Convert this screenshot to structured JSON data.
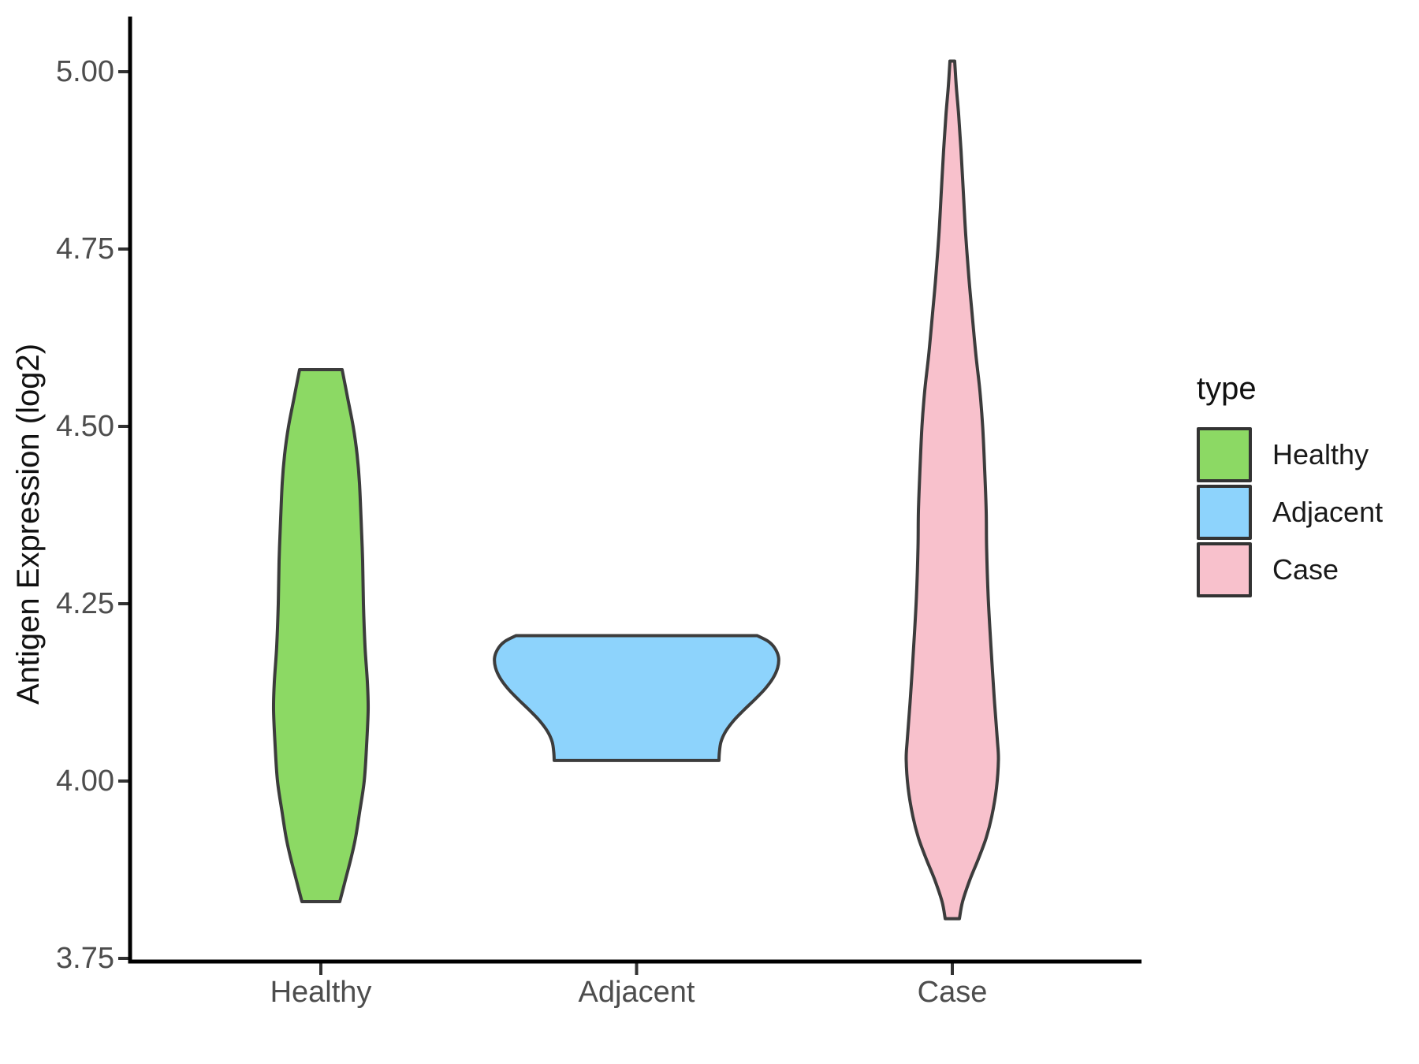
{
  "figure": {
    "background": "#ffffff",
    "y_axis": {
      "title": "Antigen Expression (log2)",
      "tick_labels": [
        "5.00",
        "4.75",
        "4.50",
        "4.25",
        "4.00",
        "3.75"
      ],
      "tick_values": [
        5.0,
        4.75,
        4.5,
        4.25,
        4.0,
        3.75
      ]
    },
    "x_axis": {
      "categories": [
        "Healthy",
        "Adjacent",
        "Case"
      ]
    },
    "legend": {
      "title": "type",
      "entries": [
        {
          "label": "Healthy",
          "color": "#8cd964"
        },
        {
          "label": "Adjacent",
          "color": "#8dd3fc"
        },
        {
          "label": "Case",
          "color": "#f8c1cc"
        }
      ]
    }
  },
  "chart_data": {
    "type": "violin",
    "title": "",
    "xlabel": "",
    "ylabel": "Antigen Expression (log2)",
    "categories": [
      "Healthy",
      "Adjacent",
      "Case"
    ],
    "ylim": [
      3.72,
      5.07
    ],
    "y_ticks": [
      5.0,
      4.75,
      4.5,
      4.25,
      4.0,
      3.75
    ],
    "grid": false,
    "legend_position": "right",
    "outline_color": "#3c3c3c",
    "axis_color": "#000000",
    "tick_color": "#333333",
    "tick_label_color": "#4d4d4d",
    "profile_units": "each point is [y_value_log2, half_width_px]; violins trimmed flat at data range ends",
    "series": [
      {
        "name": "Healthy",
        "fill": "#8cd964",
        "data_range": [
          3.83,
          4.58
        ],
        "profile": [
          [
            4.58,
            27
          ],
          [
            4.54,
            34
          ],
          [
            4.5,
            41
          ],
          [
            4.46,
            46
          ],
          [
            4.42,
            49
          ],
          [
            4.37,
            51
          ],
          [
            4.31,
            53
          ],
          [
            4.25,
            54
          ],
          [
            4.19,
            56
          ],
          [
            4.14,
            59
          ],
          [
            4.1,
            60
          ],
          [
            4.05,
            58
          ],
          [
            4.0,
            55
          ],
          [
            3.955,
            49
          ],
          [
            3.92,
            44
          ],
          [
            3.89,
            38
          ],
          [
            3.86,
            31
          ],
          [
            3.83,
            24
          ]
        ]
      },
      {
        "name": "Adjacent",
        "fill": "#8dd3fc",
        "data_range": [
          4.03,
          4.21
        ],
        "profile": [
          [
            4.205,
            153
          ],
          [
            4.197,
            167
          ],
          [
            4.188,
            175
          ],
          [
            4.175,
            180
          ],
          [
            4.16,
            179
          ],
          [
            4.145,
            173
          ],
          [
            4.13,
            163
          ],
          [
            4.115,
            150
          ],
          [
            4.1,
            136
          ],
          [
            4.085,
            123
          ],
          [
            4.07,
            113
          ],
          [
            4.055,
            107
          ],
          [
            4.04,
            105
          ],
          [
            4.029,
            104.5
          ]
        ]
      },
      {
        "name": "Case",
        "fill": "#f8c1cc",
        "data_range": [
          3.81,
          5.02
        ],
        "profile": [
          [
            5.015,
            3
          ],
          [
            4.98,
            5
          ],
          [
            4.94,
            8
          ],
          [
            4.89,
            11
          ],
          [
            4.83,
            14
          ],
          [
            4.77,
            17
          ],
          [
            4.71,
            21
          ],
          [
            4.66,
            25
          ],
          [
            4.6,
            30
          ],
          [
            4.55,
            35
          ],
          [
            4.5,
            38.5
          ],
          [
            4.44,
            41
          ],
          [
            4.38,
            43
          ],
          [
            4.33,
            43.5
          ],
          [
            4.26,
            45.5
          ],
          [
            4.19,
            49
          ],
          [
            4.12,
            53
          ],
          [
            4.06,
            57
          ],
          [
            4.03,
            58.5
          ],
          [
            3.99,
            56
          ],
          [
            3.95,
            50
          ],
          [
            3.92,
            43
          ],
          [
            3.89,
            33
          ],
          [
            3.86,
            22
          ],
          [
            3.83,
            13
          ],
          [
            3.806,
            9
          ]
        ]
      }
    ]
  }
}
